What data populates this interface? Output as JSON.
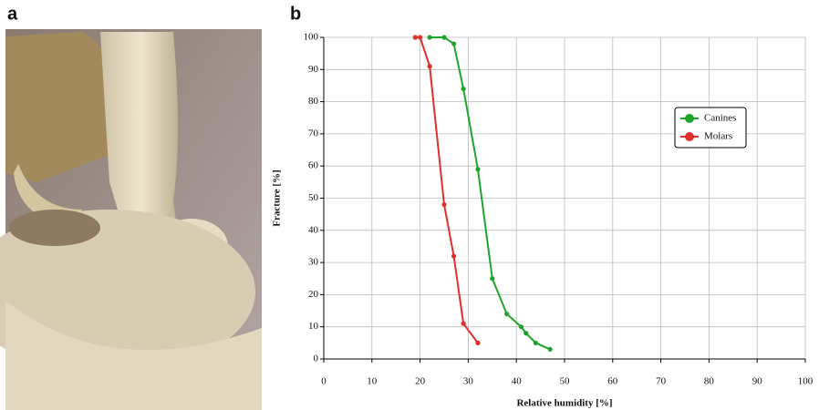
{
  "panel_labels": [
    "a",
    "b"
  ],
  "chart_data": {
    "type": "line",
    "x_label": "Relative humidity [%]",
    "y_label": "Fracture [%]",
    "series": [
      {
        "name": "Canines",
        "color": "#1fa52a",
        "x": [
          22,
          25,
          27,
          29,
          32,
          35,
          38,
          41,
          42,
          44,
          47
        ],
        "values": [
          100,
          100,
          98,
          84,
          59,
          25,
          14,
          10,
          8,
          5,
          3
        ]
      },
      {
        "name": "Molars",
        "color": "#e0302b",
        "x": [
          19,
          20,
          22,
          25,
          27,
          29,
          32
        ],
        "values": [
          100,
          100,
          91,
          48,
          32,
          11,
          5
        ]
      }
    ],
    "xlim": [
      0,
      100
    ],
    "ylim": [
      0,
      100
    ],
    "xticks": [
      0,
      10,
      20,
      30,
      40,
      50,
      60,
      70,
      80,
      90,
      100
    ],
    "yticks": [
      0,
      10,
      20,
      30,
      40,
      50,
      60,
      70,
      80,
      90,
      100
    ],
    "grid": true,
    "legend": "upper right"
  }
}
